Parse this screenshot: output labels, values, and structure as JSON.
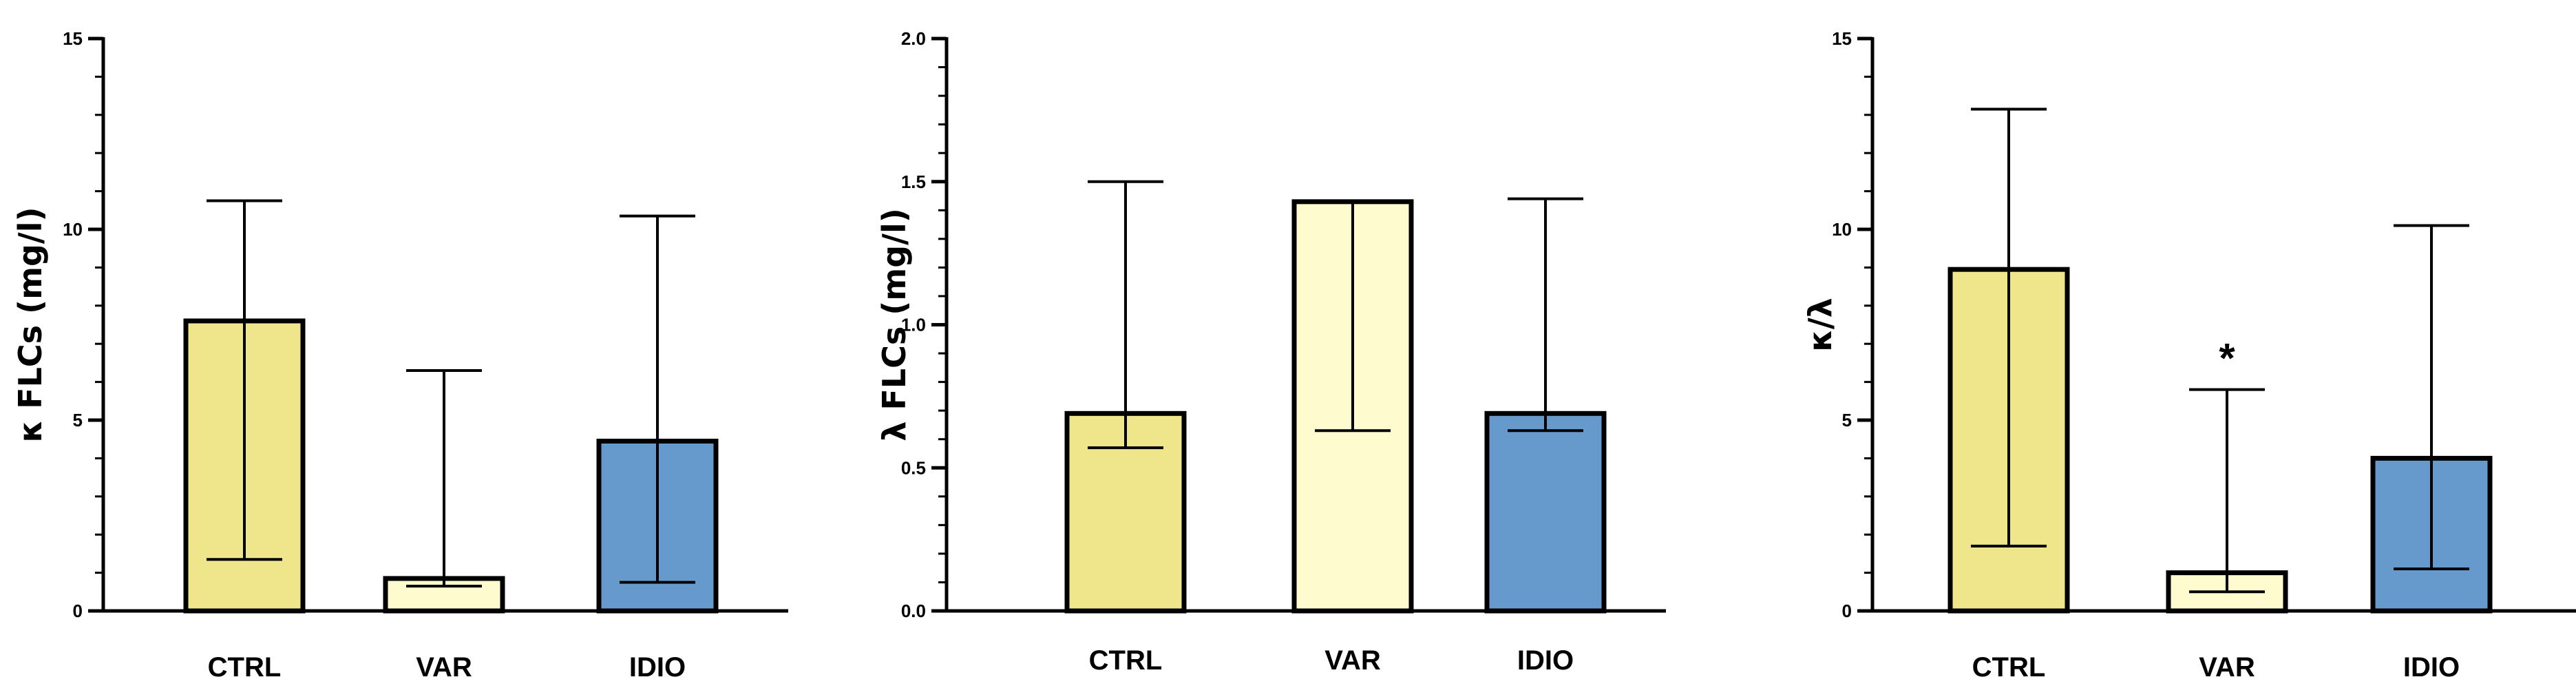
{
  "colors": {
    "ctrl": "#EFE58A",
    "var": "#FEFCCE",
    "idio": "#6699CC",
    "axis": "#000000"
  },
  "chart_data": [
    {
      "type": "bar",
      "ylabel": "κ FLCs (mg/l)",
      "categories": [
        "CTRL",
        "VAR",
        "IDIO"
      ],
      "values": [
        7.6,
        0.85,
        4.45
      ],
      "error_high": [
        10.75,
        6.3,
        10.35
      ],
      "error_low": [
        1.35,
        0.65,
        0.75
      ],
      "ylim": [
        0,
        15
      ],
      "yticks": [
        "0",
        "5",
        "10",
        "15"
      ],
      "yticks_values": [
        0,
        5,
        10,
        15
      ],
      "minor_step": 1,
      "annotations": []
    },
    {
      "type": "bar",
      "ylabel": "λ FLCs (mg/l)",
      "categories": [
        "CTRL",
        "VAR",
        "IDIO"
      ],
      "values": [
        0.69,
        1.43,
        0.69
      ],
      "error_high": [
        1.5,
        1.43,
        1.44
      ],
      "error_low": [
        0.57,
        0.63,
        0.63
      ],
      "ylim": [
        0,
        2.0
      ],
      "yticks": [
        "0.0",
        "0.5",
        "1.0",
        "1.5",
        "2.0"
      ],
      "yticks_values": [
        0,
        0.5,
        1.0,
        1.5,
        2.0
      ],
      "minor_step": 0.1,
      "annotations": []
    },
    {
      "type": "bar",
      "ylabel": "κ/λ",
      "categories": [
        "CTRL",
        "VAR",
        "IDIO"
      ],
      "values": [
        8.95,
        1.0,
        4.0
      ],
      "error_high": [
        13.15,
        5.8,
        10.1
      ],
      "error_low": [
        1.7,
        0.5,
        1.1
      ],
      "ylim": [
        0,
        15
      ],
      "yticks": [
        "0",
        "5",
        "10",
        "15"
      ],
      "yticks_values": [
        0,
        5,
        10,
        15
      ],
      "minor_step": 1,
      "annotations": [
        {
          "category_index": 1,
          "text": "*"
        }
      ]
    }
  ]
}
